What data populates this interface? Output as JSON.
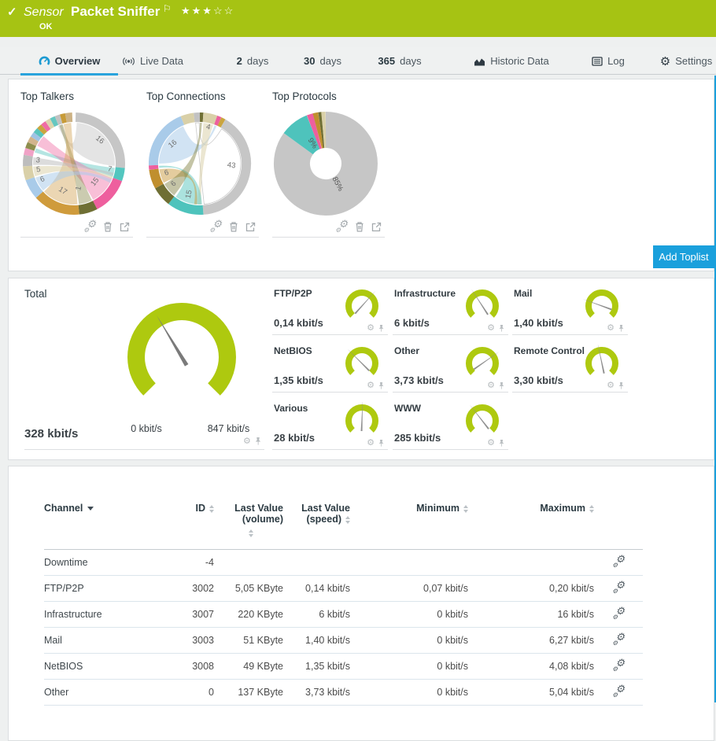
{
  "colors": {
    "header_green": "#a6c313",
    "gauge_green": "#aec90f",
    "accent_blue": "#1aa0dc",
    "tab_active_blue": "#29a3dd",
    "heading_text": "#2b3a42"
  },
  "header": {
    "type_label": "Sensor",
    "title": "Packet Sniffer",
    "status": "OK",
    "stars": "★★★☆☆",
    "rating_filled": 3,
    "rating_total": 5
  },
  "tabs": {
    "items": [
      {
        "label": "Overview",
        "active": true
      },
      {
        "label": "Live Data"
      },
      {
        "num": "2",
        "label": "days"
      },
      {
        "num": "30",
        "label": "days"
      },
      {
        "num": "365",
        "label": "days"
      },
      {
        "label": "Historic Data"
      },
      {
        "label": "Log"
      },
      {
        "label": "Settings"
      }
    ]
  },
  "toplists": {
    "panels": [
      {
        "title": "Top Talkers"
      },
      {
        "title": "Top Connections"
      },
      {
        "title": "Top Protocols"
      }
    ],
    "add_button_label": "Add Toplist"
  },
  "gauges": {
    "total": {
      "label": "Total",
      "value": "328 kbit/s",
      "min_label": "0 kbit/s",
      "max_label": "847 kbit/s"
    },
    "channels": [
      {
        "name": "FTP/P2P",
        "value": "0,14 kbit/s"
      },
      {
        "name": "Infrastructure",
        "value": "6 kbit/s"
      },
      {
        "name": "Mail",
        "value": "1,40 kbit/s"
      },
      {
        "name": "NetBIOS",
        "value": "1,35 kbit/s"
      },
      {
        "name": "Other",
        "value": "3,73 kbit/s"
      },
      {
        "name": "Remote Control",
        "value": "3,30 kbit/s"
      },
      {
        "name": "Various",
        "value": "28 kbit/s"
      },
      {
        "name": "WWW",
        "value": "285 kbit/s"
      }
    ]
  },
  "table": {
    "header": {
      "col1": "Channel",
      "col2": "ID",
      "col3a": "Last Value",
      "col3b": "(volume)",
      "col4a": "Last Value",
      "col4b": "(speed)",
      "col5": "Minimum",
      "col6": "Maximum"
    },
    "columns": [
      "Channel",
      "ID",
      "Last Value (volume)",
      "Last Value (speed)",
      "Minimum",
      "Maximum"
    ],
    "rows": [
      {
        "channel": "Downtime",
        "id": "-4",
        "volume": "",
        "speed": "",
        "min": "",
        "max": ""
      },
      {
        "channel": "FTP/P2P",
        "id": "3002",
        "volume": "5,05 KByte",
        "speed": "0,14 kbit/s",
        "min": "0,07 kbit/s",
        "max": "0,20 kbit/s"
      },
      {
        "channel": "Infrastructure",
        "id": "3007",
        "volume": "220 KByte",
        "speed": "6 kbit/s",
        "min": "0 kbit/s",
        "max": "16 kbit/s"
      },
      {
        "channel": "Mail",
        "id": "3003",
        "volume": "51 KByte",
        "speed": "1,40 kbit/s",
        "min": "0 kbit/s",
        "max": "6,27 kbit/s"
      },
      {
        "channel": "NetBIOS",
        "id": "3008",
        "volume": "49 KByte",
        "speed": "1,35 kbit/s",
        "min": "0 kbit/s",
        "max": "4,08 kbit/s"
      },
      {
        "channel": "Other",
        "id": "0",
        "volume": "137 KByte",
        "speed": "3,73 kbit/s",
        "min": "0 kbit/s",
        "max": "5,04 kbit/s"
      }
    ]
  },
  "chart_data": [
    {
      "type": "chord",
      "title": "Top Talkers",
      "segments": [
        {
          "a": [
            2,
            95
          ],
          "c": "#c6c6c6"
        },
        {
          "a": [
            95,
            110
          ],
          "c": "#53c6bf"
        },
        {
          "a": [
            110,
            153
          ],
          "c": "#ee5f9e"
        },
        {
          "a": [
            153,
            174
          ],
          "c": "#6f6f34"
        },
        {
          "a": [
            174,
            228
          ],
          "c": "#cf9b3c"
        },
        {
          "a": [
            228,
            251
          ],
          "c": "#a9cbe9"
        },
        {
          "a": [
            251,
            267
          ],
          "c": "#d9d0a8"
        },
        {
          "a": [
            267,
            280
          ],
          "c": "#bdbdbd"
        },
        {
          "a": [
            280,
            288
          ],
          "c": "#f0a2c6"
        },
        {
          "a": [
            288,
            295
          ],
          "c": "#8e8e4d"
        },
        {
          "a": [
            295,
            302
          ],
          "c": "#d2b48c"
        },
        {
          "a": [
            302,
            308
          ],
          "c": "#9fc3e4"
        },
        {
          "a": [
            308,
            314
          ],
          "c": "#59c4bd"
        },
        {
          "a": [
            314,
            320
          ],
          "c": "#caa53f"
        },
        {
          "a": [
            320,
            326
          ],
          "c": "#ef6da5"
        },
        {
          "a": [
            326,
            332
          ],
          "c": "#ddd5ae"
        },
        {
          "a": [
            332,
            338
          ],
          "c": "#66c7c0"
        },
        {
          "a": [
            338,
            344
          ],
          "c": "#c2c2c2"
        },
        {
          "a": [
            344,
            350
          ],
          "c": "#c79b38"
        },
        {
          "a": [
            350,
            358
          ],
          "c": "#cdb284"
        }
      ],
      "ribbons": [
        {
          "s": [
            4,
            93
          ],
          "t": [
            337,
            343
          ],
          "c": "#c9c9c9",
          "o": 0.5
        },
        {
          "s": [
            96,
            109
          ],
          "t": [
            286,
            292
          ],
          "c": "#5ac5be",
          "o": 0.45
        },
        {
          "s": [
            111,
            152
          ],
          "t": [
            296,
            312
          ],
          "c": "#ef70a6",
          "o": 0.45
        },
        {
          "s": [
            154,
            173
          ],
          "t": [
            339,
            344
          ],
          "c": "#7c7c3a",
          "o": 0.4
        },
        {
          "s": [
            175,
            227
          ],
          "t": [
            345,
            356
          ],
          "c": "#d2a556",
          "o": 0.45
        },
        {
          "s": [
            229,
            250
          ],
          "t": [
            113,
            118
          ],
          "c": "#abccea",
          "o": 0.55
        },
        {
          "s": [
            252,
            266
          ],
          "t": [
            108,
            112
          ],
          "c": "#dbd2ab",
          "o": 0.55
        },
        {
          "s": [
            268,
            279
          ],
          "t": [
            103,
            107
          ],
          "c": "#bfbfbf",
          "o": 0.55
        }
      ],
      "labels": [
        {
          "t": "16",
          "a": 48,
          "r": 42,
          "rot": 40
        },
        {
          "t": "7",
          "a": 102,
          "r": 46,
          "rot": 12
        },
        {
          "t": "15",
          "a": 131,
          "r": 38,
          "rot": -52
        },
        {
          "t": "1",
          "a": 165,
          "r": 33,
          "rot": -78
        },
        {
          "t": "17",
          "a": 203,
          "r": 40,
          "rot": 32
        },
        {
          "t": "6",
          "a": 240,
          "r": 45,
          "rot": -22
        },
        {
          "t": "5",
          "a": 257,
          "r": 46,
          "rot": -8
        },
        {
          "t": "3",
          "a": 272,
          "r": 46,
          "rot": 6
        }
      ]
    },
    {
      "type": "chord",
      "title": "Top Connections",
      "segments": [
        {
          "a": [
            0,
            4
          ],
          "c": "#6f6f34"
        },
        {
          "a": [
            4,
            20
          ],
          "c": "#d9d0a8"
        },
        {
          "a": [
            20,
            25
          ],
          "c": "#ee5f9e"
        },
        {
          "a": [
            25,
            30
          ],
          "c": "#caa53f"
        },
        {
          "a": [
            30,
            176
          ],
          "c": "#c6c6c6"
        },
        {
          "a": [
            176,
            218
          ],
          "c": "#4ec3bc"
        },
        {
          "a": [
            218,
            241
          ],
          "c": "#6f6f34"
        },
        {
          "a": [
            241,
            263
          ],
          "c": "#c08f2e"
        },
        {
          "a": [
            263,
            268
          ],
          "c": "#ee5f9e"
        },
        {
          "a": [
            268,
            338
          ],
          "c": "#a9cbe9"
        },
        {
          "a": [
            338,
            353
          ],
          "c": "#d9d0a8"
        },
        {
          "a": [
            353,
            360
          ],
          "c": "#c2c2c2"
        }
      ],
      "ribbons": [
        {
          "s": [
            32,
            174
          ],
          "t": [
            354,
            359
          ],
          "c": "#ffffff",
          "o": 1,
          "st": "#c9c9c9"
        },
        {
          "s": [
            270,
            336
          ],
          "t": [
            21,
            24
          ],
          "c": "#abccea",
          "o": 0.55
        },
        {
          "s": [
            5,
            19
          ],
          "t": [
            178,
            183
          ],
          "c": "#dbd2ab",
          "o": 0.55
        },
        {
          "s": [
            177,
            216
          ],
          "t": [
            264,
            267
          ],
          "c": "#57c5be",
          "o": 0.5
        },
        {
          "s": [
            242,
            262
          ],
          "t": [
            184,
            188
          ],
          "c": "#c99a3d",
          "o": 0.5
        },
        {
          "s": [
            219,
            240
          ],
          "t": [
            0,
            3
          ],
          "c": "#7c7c3a",
          "o": 0.45
        }
      ],
      "labels": [
        {
          "t": "4",
          "a": 13,
          "r": 45,
          "rot": 14
        },
        {
          "t": "43",
          "a": 97,
          "r": 40,
          "rot": 8
        },
        {
          "t": "15",
          "a": 196,
          "r": 41,
          "rot": -80
        },
        {
          "t": "6",
          "a": 229,
          "r": 42,
          "rot": -42
        },
        {
          "t": "6",
          "a": 251,
          "r": 44,
          "rot": -16
        },
        {
          "t": "16",
          "a": 305,
          "r": 40,
          "rot": -40
        }
      ]
    },
    {
      "type": "pie",
      "title": "Top Protocols",
      "slices": [
        {
          "label": "85%",
          "value": 85
        },
        {
          "label": "9%",
          "value": 9
        }
      ],
      "segments": [
        {
          "a": [
            0,
            306
          ],
          "c": "#c6c6c6"
        },
        {
          "a": [
            306,
            338.4
          ],
          "c": "#4ec3bc"
        },
        {
          "a": [
            338.4,
            345.6
          ],
          "c": "#ee5f9e"
        },
        {
          "a": [
            345.6,
            351.6
          ],
          "c": "#c08f2e"
        },
        {
          "a": [
            351.6,
            355.2
          ],
          "c": "#6f6f34"
        },
        {
          "a": [
            355.2,
            360
          ],
          "c": "#d9d0a8"
        }
      ],
      "labels": [
        {
          "t": "85%",
          "a": 155,
          "r": 30,
          "rot": 62
        },
        {
          "t": "9%",
          "a": 322,
          "r": 31,
          "rot": 58
        }
      ]
    },
    {
      "type": "gauge",
      "title": "Total",
      "min": 0,
      "max": 847,
      "value": 328,
      "unit": "kbit/s",
      "needle_deg": -31
    },
    {
      "type": "gauge-set",
      "channels": [
        {
          "name": "FTP/P2P",
          "value_kbit": 0.14,
          "needle_deg": 42
        },
        {
          "name": "Infrastructure",
          "value_kbit": 6,
          "needle_deg": -33
        },
        {
          "name": "Mail",
          "value_kbit": 1.4,
          "needle_deg": -70
        },
        {
          "name": "NetBIOS",
          "value_kbit": 1.35,
          "needle_deg": -45
        },
        {
          "name": "Other",
          "value_kbit": 3.73,
          "needle_deg": 55
        },
        {
          "name": "Remote Control",
          "value_kbit": 3.3,
          "needle_deg": -12
        },
        {
          "name": "Various",
          "value_kbit": 28,
          "needle_deg": 2
        },
        {
          "name": "WWW",
          "value_kbit": 285,
          "needle_deg": -38
        }
      ]
    }
  ]
}
